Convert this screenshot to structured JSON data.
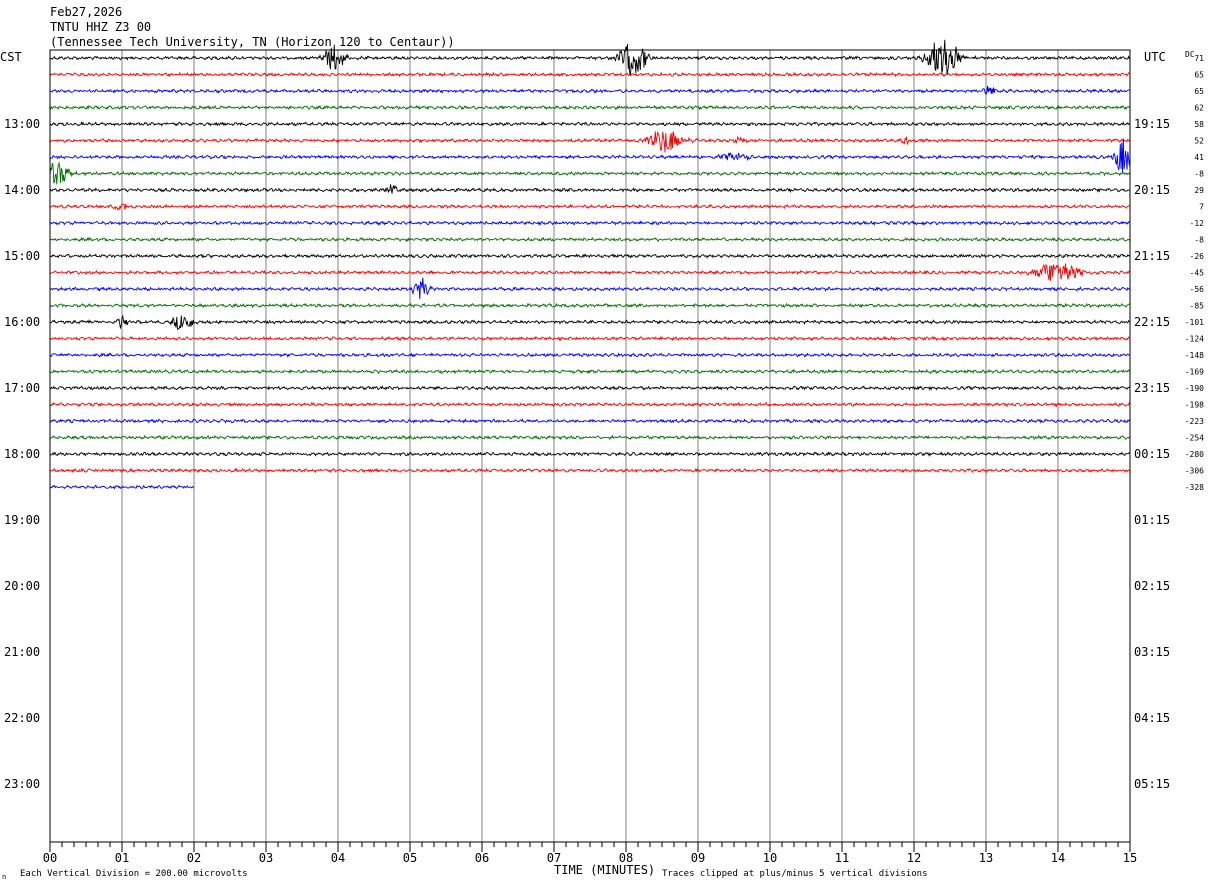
{
  "header": {
    "date": "Feb27,2026",
    "station": "TNTU HHZ Z3 00",
    "location": "(Tennessee Tech University, TN (Horizon 120 to Centaur))"
  },
  "labels": {
    "left_tz": "CST",
    "right_tz": "UTC",
    "dc": "DC",
    "xlabel": "TIME (MINUTES)",
    "scale_note": "Each Vertical Division =  200.00 microvolts",
    "clip_note": "Traces clipped at plus/minus 5 vertical divisions",
    "corner_mark": "n"
  },
  "colors": {
    "trace_cycle": [
      "#000000",
      "#ff0000",
      "#0000ff",
      "#007000"
    ],
    "grid": "#808080",
    "frame": "#000000",
    "background": "#ffffff"
  },
  "chart_data": {
    "type": "line",
    "title": "TNTU HHZ Z3 00",
    "xlabel": "TIME (MINUTES)",
    "xlim": [
      0,
      15
    ],
    "x_ticks": [
      "00",
      "01",
      "02",
      "03",
      "04",
      "05",
      "06",
      "07",
      "08",
      "09",
      "10",
      "11",
      "12",
      "13",
      "14",
      "15"
    ],
    "total_rows": 44,
    "minutes_per_row": 15,
    "hour_labels": [
      {
        "row": 4,
        "cst": "13:00",
        "utc": "19:15"
      },
      {
        "row": 8,
        "cst": "14:00",
        "utc": "20:15"
      },
      {
        "row": 12,
        "cst": "15:00",
        "utc": "21:15"
      },
      {
        "row": 16,
        "cst": "16:00",
        "utc": "22:15"
      },
      {
        "row": 20,
        "cst": "17:00",
        "utc": "23:15"
      },
      {
        "row": 24,
        "cst": "18:00",
        "utc": "00:15"
      },
      {
        "row": 28,
        "cst": "19:00",
        "utc": "01:15"
      },
      {
        "row": 32,
        "cst": "20:00",
        "utc": "02:15"
      },
      {
        "row": 36,
        "cst": "21:00",
        "utc": "03:15"
      },
      {
        "row": 40,
        "cst": "22:00",
        "utc": "04:15"
      },
      {
        "row": 44,
        "cst": "23:00",
        "utc": "05:15"
      }
    ],
    "dc_offsets": [
      "71",
      "65",
      "65",
      "62",
      "58",
      "52",
      "41",
      "-8",
      "29",
      "7",
      "-12",
      "-8",
      "-26",
      "-45",
      "-56",
      "-85",
      "-101",
      "-124",
      "-148",
      "-169",
      "-190",
      "-198",
      "-223",
      "-254",
      "-280",
      "-306",
      "-328"
    ],
    "trace_rows": 27,
    "last_row_end_minute": 2.0,
    "events": [
      {
        "row": 0,
        "minute": 3.95,
        "amp": 14,
        "width": 0.18
      },
      {
        "row": 0,
        "minute": 8.1,
        "amp": 18,
        "width": 0.25
      },
      {
        "row": 0,
        "minute": 12.4,
        "amp": 22,
        "width": 0.3
      },
      {
        "row": 2,
        "minute": 13.05,
        "amp": 6,
        "width": 0.12
      },
      {
        "row": 5,
        "minute": 8.55,
        "amp": 13,
        "width": 0.3
      },
      {
        "row": 5,
        "minute": 9.6,
        "amp": 4,
        "width": 0.15
      },
      {
        "row": 5,
        "minute": 11.9,
        "amp": 4,
        "width": 0.1
      },
      {
        "row": 6,
        "minute": 9.5,
        "amp": 4,
        "width": 0.3
      },
      {
        "row": 6,
        "minute": 14.9,
        "amp": 18,
        "width": 0.15
      },
      {
        "row": 7,
        "minute": 0.1,
        "amp": 12,
        "width": 0.25
      },
      {
        "row": 8,
        "minute": 4.75,
        "amp": 5,
        "width": 0.1
      },
      {
        "row": 9,
        "minute": 1.0,
        "amp": 5,
        "width": 0.12
      },
      {
        "row": 13,
        "minute": 14.0,
        "amp": 12,
        "width": 0.4
      },
      {
        "row": 14,
        "minute": 5.15,
        "amp": 11,
        "width": 0.15
      },
      {
        "row": 16,
        "minute": 1.0,
        "amp": 6,
        "width": 0.1
      },
      {
        "row": 16,
        "minute": 1.85,
        "amp": 10,
        "width": 0.18
      },
      {
        "row": 18,
        "minute": 4.7,
        "amp": 3,
        "width": 0.05
      }
    ]
  }
}
